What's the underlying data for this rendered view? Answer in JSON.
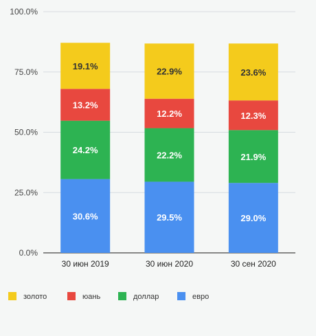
{
  "chart_data": {
    "type": "bar",
    "stacked": true,
    "categories": [
      "30 июн 2019",
      "30 июн 2020",
      "30 сен 2020"
    ],
    "series": [
      {
        "name": "евро",
        "color": "#4a90f0",
        "label_color": "#ffffff",
        "values": [
          30.6,
          29.5,
          29.0
        ],
        "labels": [
          "30.6%",
          "29.5%",
          "29.0%"
        ]
      },
      {
        "name": "доллар",
        "color": "#2db352",
        "label_color": "#ffffff",
        "values": [
          24.2,
          22.2,
          21.9
        ],
        "labels": [
          "24.2%",
          "22.2%",
          "21.9%"
        ]
      },
      {
        "name": "юань",
        "color": "#e8483f",
        "label_color": "#ffffff",
        "values": [
          13.2,
          12.2,
          12.3
        ],
        "labels": [
          "13.2%",
          "12.2%",
          "12.3%"
        ]
      },
      {
        "name": "золото",
        "color": "#f4cb1c",
        "label_color": "#333333",
        "values": [
          19.1,
          22.9,
          23.6
        ],
        "labels": [
          "19.1%",
          "22.9%",
          "23.6%"
        ]
      }
    ],
    "legend_order": [
      "золото",
      "юань",
      "доллар",
      "евро"
    ],
    "legend_position": "bottom",
    "y_ticks": [
      0,
      25,
      50,
      75,
      100
    ],
    "y_tick_labels": [
      "0.0%",
      "25.0%",
      "50.0%",
      "75.0%",
      "100.0%"
    ],
    "ylim": [
      0,
      100
    ],
    "grid": true,
    "title": "",
    "xlabel": "",
    "ylabel": ""
  }
}
